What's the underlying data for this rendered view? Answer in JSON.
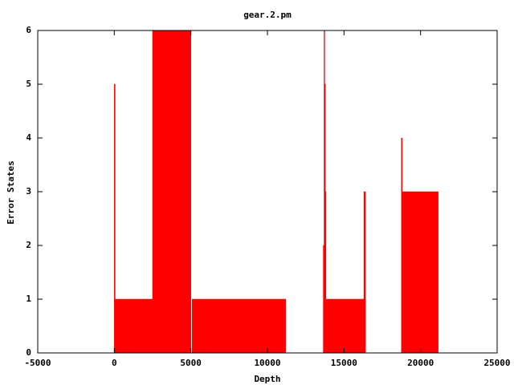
{
  "chart_data": {
    "type": "step-area",
    "title": "gear.2.pm",
    "x_label": "Depth",
    "y_label": "Error States",
    "series": [
      {
        "color": "#ff0000",
        "x": [
          0,
          50,
          2500,
          5000,
          5080,
          11200,
          13650,
          13700,
          13740,
          13780,
          13820,
          16300,
          16400,
          18750,
          18800,
          21150
        ],
        "values": [
          5,
          1,
          6,
          0,
          1,
          0,
          2,
          6,
          5,
          3,
          1,
          3,
          0,
          4,
          3,
          0
        ]
      }
    ],
    "xlim": [
      -5000,
      25000
    ],
    "xticks": [
      -5000,
      0,
      5000,
      10000,
      15000,
      20000,
      25000
    ],
    "ylim": [
      0,
      6
    ],
    "yticks": [
      0,
      1,
      2,
      3,
      4,
      5,
      6
    ]
  }
}
